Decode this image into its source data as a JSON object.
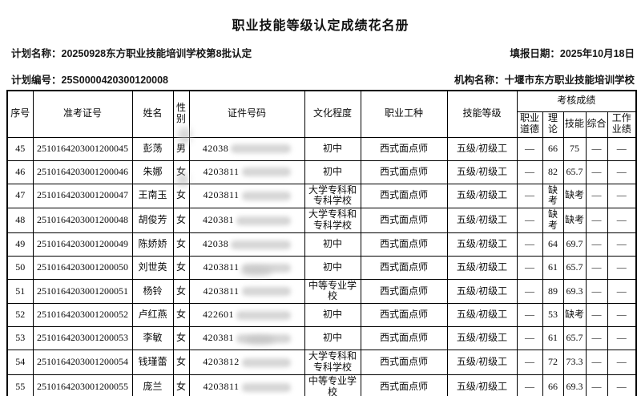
{
  "title": "职业技能等级认定成绩花名册",
  "meta": {
    "plan_name_label": "计划名称：",
    "plan_name": "20250928东方职业技能培训学校第8批认定",
    "fill_date_label": "填报日期：",
    "fill_date": "2025年10月18日",
    "plan_code_label": "计划编号：",
    "plan_code": "25S0000420300120008",
    "org_label": "机构名称：",
    "org_name": "十堰市东方职业技能培训学校"
  },
  "table": {
    "columns": [
      "序号",
      "准考证号",
      "姓名",
      "性别",
      "证件号码",
      "文化程度",
      "职业工种",
      "技能等级"
    ],
    "score_group_header": "考核成绩",
    "score_columns": [
      "职业道德",
      "理论",
      "技能",
      "综合",
      "工作业绩"
    ],
    "rows": [
      {
        "seq": "45",
        "ticket": "2510164203001200045",
        "name": "彭荡",
        "gender": "男",
        "id_prefix": "42038",
        "education": "初中",
        "occupation": "西式面点师",
        "level": "五级/初级工",
        "scores": [
          "—",
          "66",
          "75",
          "—",
          "—"
        ]
      },
      {
        "seq": "46",
        "ticket": "2510164203001200046",
        "name": "朱娜",
        "gender": "女",
        "id_prefix": "4203811",
        "education": "初中",
        "occupation": "西式面点师",
        "level": "五级/初级工",
        "scores": [
          "—",
          "82",
          "65.7",
          "—",
          "—"
        ]
      },
      {
        "seq": "47",
        "ticket": "2510164203001200047",
        "name": "王南玉",
        "gender": "女",
        "id_prefix": "4203811",
        "education": "大学专科和专科学校",
        "occupation": "西式面点师",
        "level": "五级/初级工",
        "scores": [
          "—",
          "缺考",
          "缺考",
          "—",
          "—"
        ]
      },
      {
        "seq": "48",
        "ticket": "2510164203001200048",
        "name": "胡俊芳",
        "gender": "女",
        "id_prefix": "420381",
        "education": "大学专科和专科学校",
        "occupation": "西式面点师",
        "level": "五级/初级工",
        "scores": [
          "—",
          "缺考",
          "缺考",
          "—",
          "—"
        ]
      },
      {
        "seq": "49",
        "ticket": "2510164203001200049",
        "name": "陈娇娇",
        "gender": "女",
        "id_prefix": "42038",
        "education": "初中",
        "occupation": "西式面点师",
        "level": "五级/初级工",
        "scores": [
          "—",
          "64",
          "69.7",
          "—",
          "—"
        ]
      },
      {
        "seq": "50",
        "ticket": "2510164203001200050",
        "name": "刘世英",
        "gender": "女",
        "id_prefix": "4203811",
        "education": "初中",
        "occupation": "西式面点师",
        "level": "五级/初级工",
        "scores": [
          "—",
          "61",
          "65.7",
          "—",
          "—"
        ]
      },
      {
        "seq": "51",
        "ticket": "2510164203001200051",
        "name": "杨铃",
        "gender": "女",
        "id_prefix": "4203811",
        "education": "中等专业学校",
        "occupation": "西式面点师",
        "level": "五级/初级工",
        "scores": [
          "—",
          "89",
          "69.3",
          "—",
          "—"
        ]
      },
      {
        "seq": "52",
        "ticket": "2510164203001200052",
        "name": "卢红燕",
        "gender": "女",
        "id_prefix": "422601",
        "education": "初中",
        "occupation": "西式面点师",
        "level": "五级/初级工",
        "scores": [
          "—",
          "53",
          "缺考",
          "—",
          "—"
        ]
      },
      {
        "seq": "53",
        "ticket": "2510164203001200053",
        "name": "李敏",
        "gender": "女",
        "id_prefix": "420381",
        "education": "初中",
        "occupation": "西式面点师",
        "level": "五级/初级工",
        "scores": [
          "—",
          "61",
          "65.7",
          "—",
          "—"
        ]
      },
      {
        "seq": "54",
        "ticket": "2510164203001200054",
        "name": "钱瑾蕾",
        "gender": "女",
        "id_prefix": "4203812",
        "education": "大学专科和专科学校",
        "occupation": "西式面点师",
        "level": "五级/初级工",
        "scores": [
          "—",
          "72",
          "73.3",
          "—",
          "—"
        ]
      },
      {
        "seq": "55",
        "ticket": "2510164203001200055",
        "name": "庞兰",
        "gender": "女",
        "id_prefix": "4203811",
        "education": "中等专业学校",
        "occupation": "西式面点师",
        "level": "五级/初级工",
        "scores": [
          "—",
          "66",
          "69.3",
          "—",
          "—"
        ]
      }
    ]
  }
}
